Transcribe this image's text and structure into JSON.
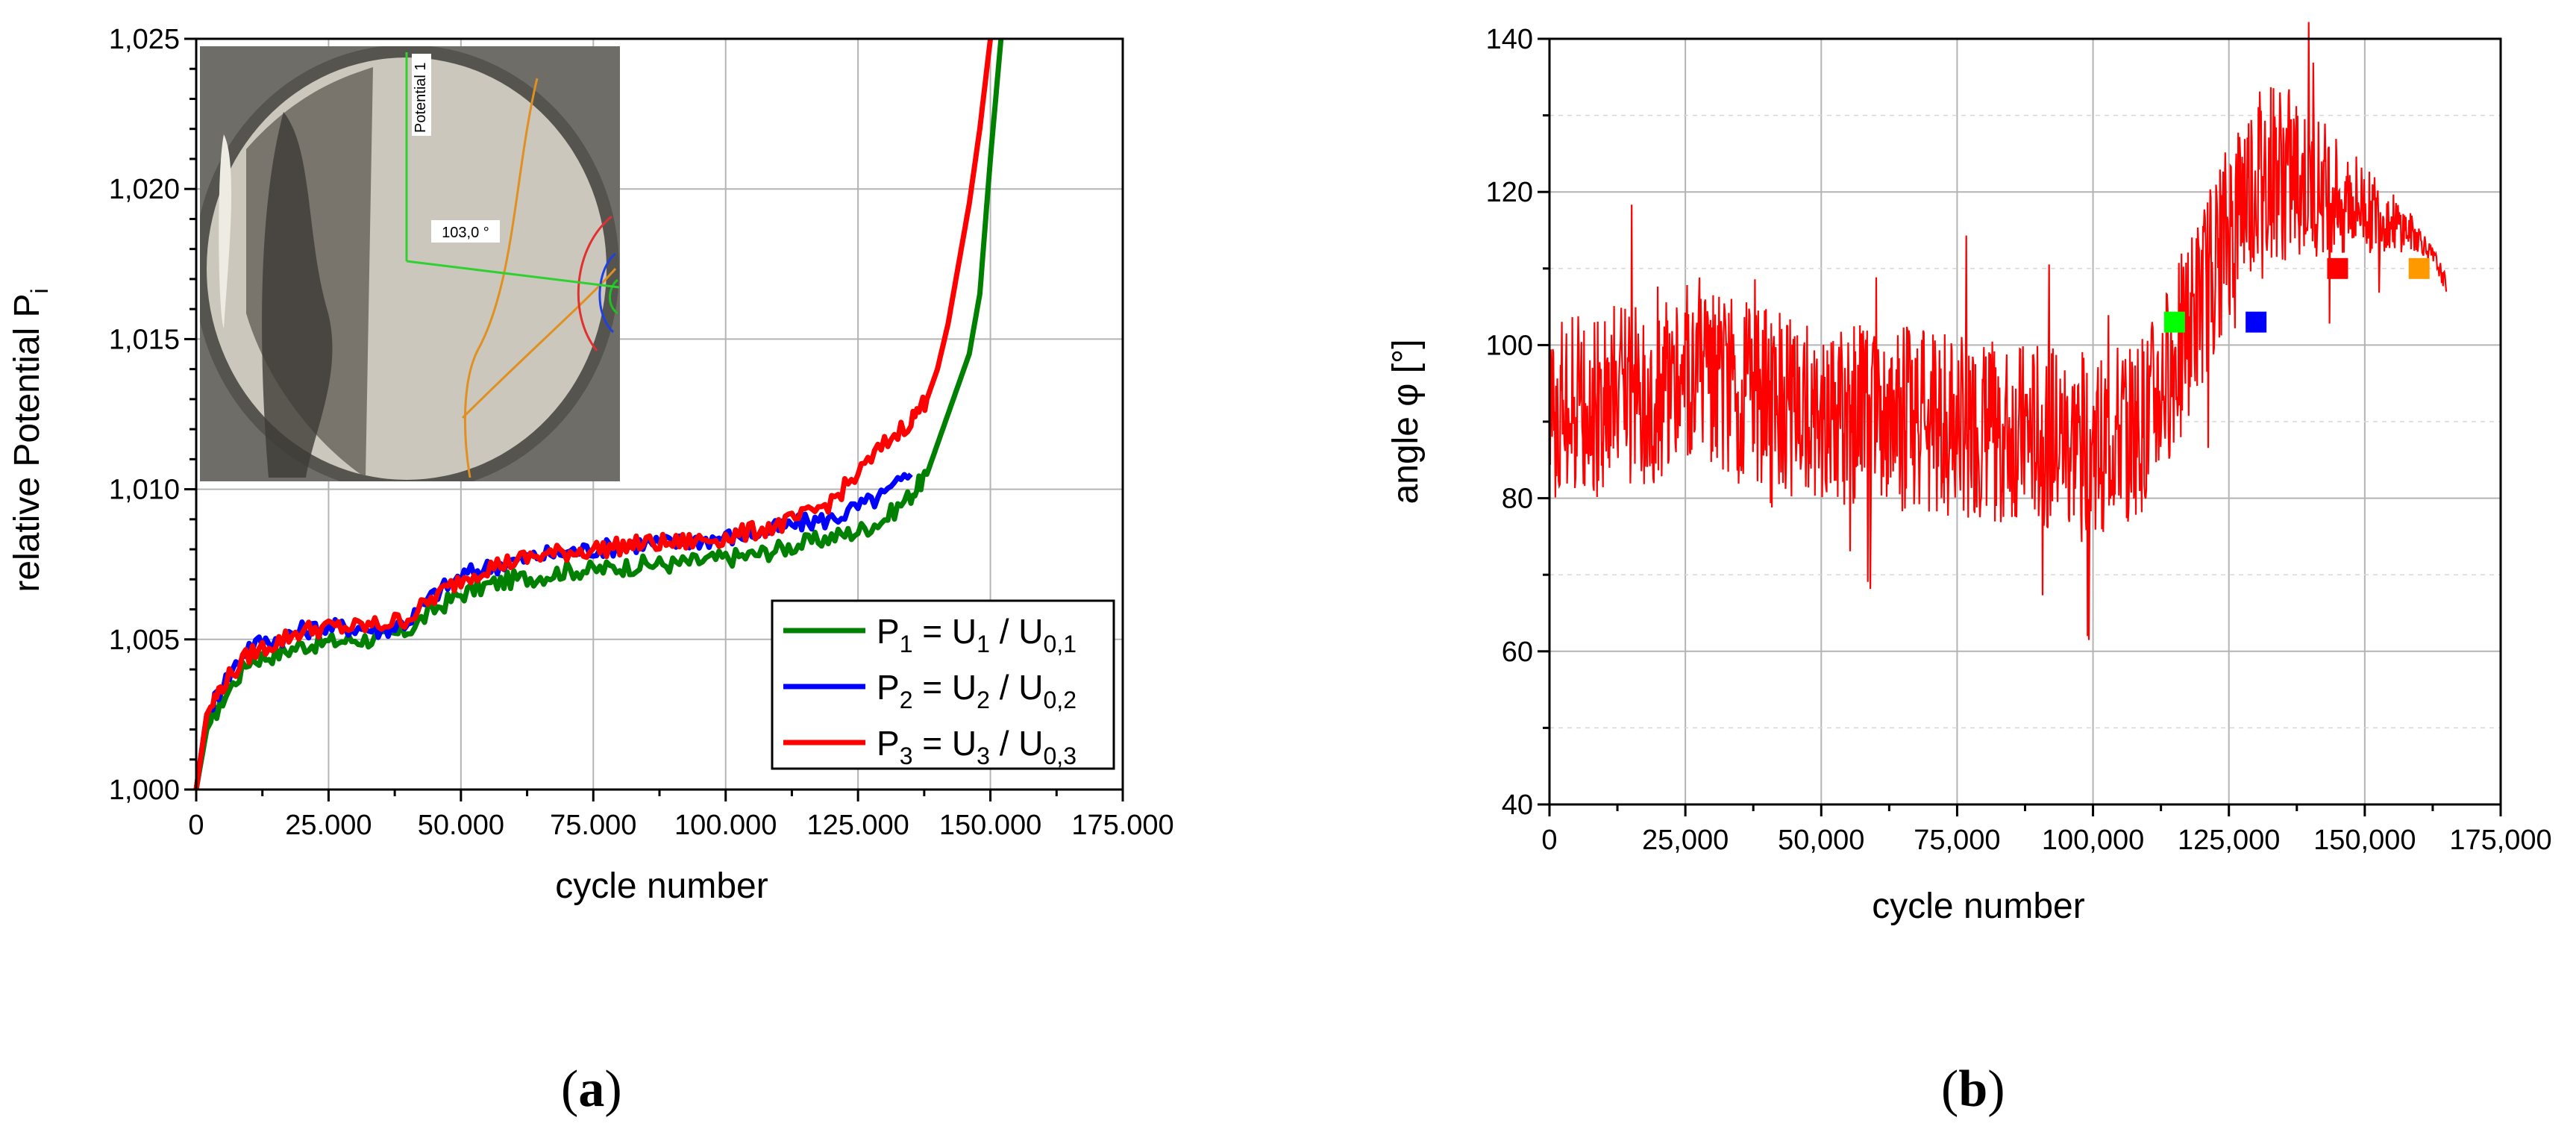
{
  "chart_data": [
    {
      "panel": "a",
      "type": "line",
      "ylabel": "relative Potential P",
      "ylabel_sub": "i",
      "xlabel": "cycle number",
      "xlim": [
        0,
        175000
      ],
      "ylim": [
        1.0,
        1.025
      ],
      "x_ticks": [
        "0",
        "25.000",
        "50.000",
        "75.000",
        "100.000",
        "125.000",
        "150.000",
        "175.000"
      ],
      "y_ticks": [
        "1,000",
        "1,005",
        "1,010",
        "1,015",
        "1,020",
        "1,025"
      ],
      "grid": true,
      "legend_position": "bottom-right",
      "series": [
        {
          "name": "P1 = U1 / U0,1",
          "label": [
            "P",
            "1",
            " = U",
            "1",
            " / U",
            "0,1"
          ],
          "color": "#008000",
          "x": [
            0,
            2000,
            5000,
            10000,
            15000,
            20000,
            25000,
            30000,
            35000,
            40000,
            45000,
            50000,
            55000,
            60000,
            65000,
            70000,
            75000,
            80000,
            85000,
            90000,
            95000,
            100000,
            105000,
            110000,
            115000,
            120000,
            125000,
            130000,
            135000,
            138000,
            140000,
            142000,
            144000,
            146000,
            148000,
            150000,
            152000
          ],
          "y": [
            1.0,
            1.002,
            1.003,
            1.0043,
            1.0045,
            1.0048,
            1.0049,
            1.005,
            1.005,
            1.0053,
            1.006,
            1.0065,
            1.0068,
            1.007,
            1.0071,
            1.0073,
            1.0073,
            1.0074,
            1.0075,
            1.0075,
            1.0076,
            1.0077,
            1.0078,
            1.008,
            1.0082,
            1.0084,
            1.0086,
            1.009,
            1.0098,
            1.0105,
            1.0115,
            1.0125,
            1.0135,
            1.0145,
            1.0165,
            1.021,
            1.025
          ]
        },
        {
          "name": "P2 = U2 / U0,2",
          "label": [
            "P",
            "2",
            " = U",
            "2",
            " / U",
            "0,2"
          ],
          "color": "#0000ff",
          "x": [
            0,
            2000,
            5000,
            10000,
            15000,
            20000,
            25000,
            30000,
            35000,
            40000,
            45000,
            50000,
            55000,
            60000,
            65000,
            70000,
            75000,
            80000,
            85000,
            90000,
            95000,
            100000,
            105000,
            110000,
            115000,
            120000,
            125000,
            130000,
            135000
          ],
          "y": [
            1.0,
            1.0025,
            1.0035,
            1.0048,
            1.005,
            1.0053,
            1.0054,
            1.0054,
            1.0053,
            1.0056,
            1.0065,
            1.0071,
            1.0074,
            1.0076,
            1.0078,
            1.0079,
            1.008,
            1.0081,
            1.0082,
            1.0082,
            1.0083,
            1.0084,
            1.0085,
            1.0087,
            1.0089,
            1.009,
            1.0094,
            1.0098,
            1.0105
          ]
        },
        {
          "name": "P3 = U3 / U0,3",
          "label": [
            "P",
            "3",
            " = U",
            "3",
            " / U",
            "0,3"
          ],
          "color": "#ff0000",
          "x": [
            0,
            2000,
            5000,
            10000,
            15000,
            20000,
            25000,
            30000,
            35000,
            40000,
            45000,
            50000,
            55000,
            60000,
            65000,
            70000,
            75000,
            80000,
            85000,
            90000,
            95000,
            100000,
            105000,
            110000,
            115000,
            120000,
            125000,
            130000,
            135000,
            138000,
            140000,
            142000,
            144000,
            146000,
            148000,
            150000
          ],
          "y": [
            1.0,
            1.0025,
            1.0035,
            1.0045,
            1.0049,
            1.0053,
            1.0054,
            1.0054,
            1.0055,
            1.0057,
            1.0064,
            1.007,
            1.0074,
            1.0076,
            1.0078,
            1.0079,
            1.008,
            1.0081,
            1.0082,
            1.0082,
            1.0083,
            1.0084,
            1.0086,
            1.0088,
            1.0091,
            1.0096,
            1.0105,
            1.0115,
            1.0123,
            1.013,
            1.014,
            1.0155,
            1.0175,
            1.0195,
            1.022,
            1.025
          ]
        }
      ],
      "inset": {
        "labels": [
          "Potential 1",
          "103,0 °"
        ]
      }
    },
    {
      "panel": "b",
      "type": "line",
      "ylabel": "angle φ [°]",
      "xlabel": "cycle number",
      "xlim": [
        0,
        175000
      ],
      "ylim": [
        40,
        140
      ],
      "x_ticks": [
        "0",
        "25,000",
        "50,000",
        "75,000",
        "100,000",
        "125,000",
        "150,000",
        "175,000"
      ],
      "y_ticks": [
        "40",
        "60",
        "80",
        "100",
        "120",
        "140"
      ],
      "grid": true,
      "series": [
        {
          "name": "angle",
          "color": "#ff0000",
          "noise_band": 12,
          "x": [
            0,
            10000,
            20000,
            30000,
            40000,
            50000,
            60000,
            70000,
            80000,
            90000,
            100000,
            110000,
            115000,
            120000,
            125000,
            128000,
            130000,
            133000,
            136000,
            140000,
            145000,
            150000,
            155000,
            160000,
            163000,
            165000
          ],
          "y": [
            92,
            93,
            94,
            95,
            93,
            90,
            91,
            90,
            89,
            88,
            87,
            90,
            98,
            106,
            115,
            120,
            122,
            123,
            122,
            121,
            120,
            118,
            116,
            114,
            111,
            108
          ]
        }
      ],
      "markers": [
        {
          "x": 115000,
          "y": 103,
          "color": "#00ff00"
        },
        {
          "x": 130000,
          "y": 103,
          "color": "#0000ff"
        },
        {
          "x": 145000,
          "y": 110,
          "color": "#ff0000"
        },
        {
          "x": 160000,
          "y": 110,
          "color": "#ff9900"
        }
      ]
    }
  ],
  "captions": [
    {
      "open": "(",
      "letter": "a",
      "close": ")"
    },
    {
      "open": "(",
      "letter": "b",
      "close": ")"
    }
  ]
}
